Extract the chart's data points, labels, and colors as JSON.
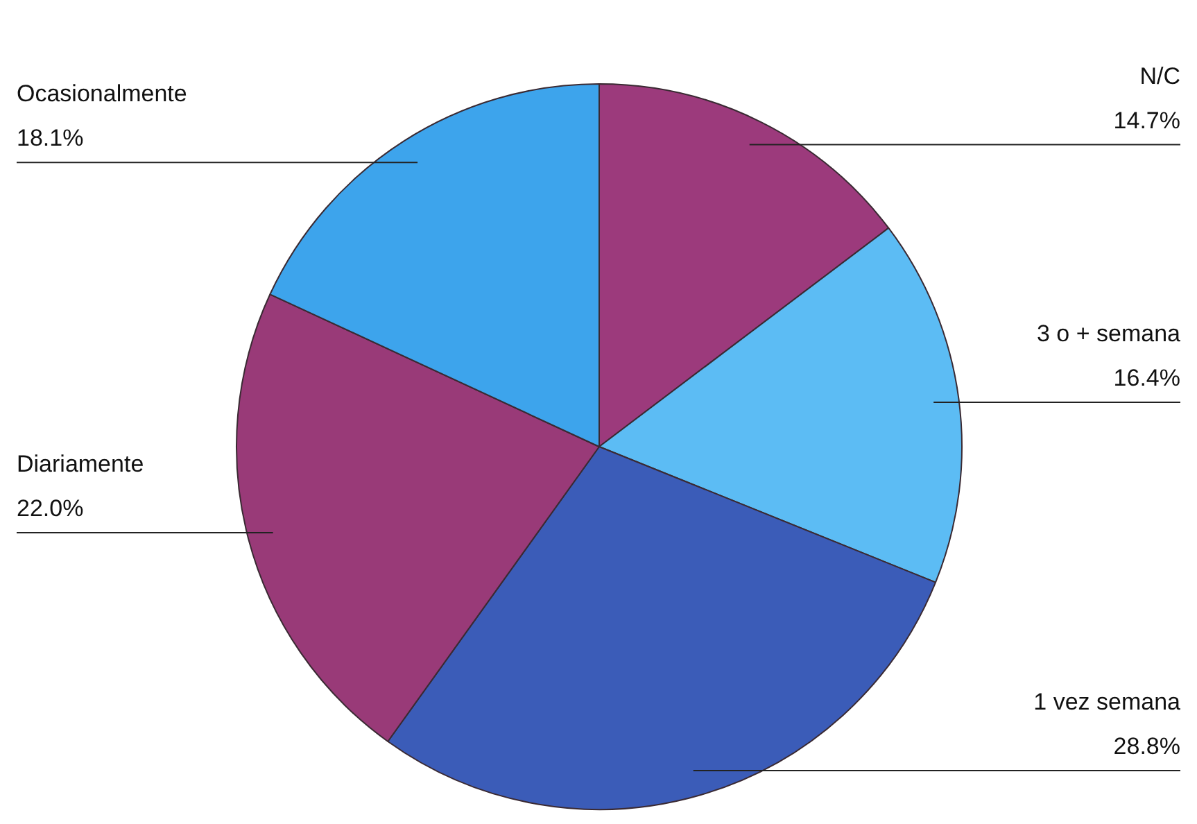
{
  "chart_data": {
    "type": "pie",
    "categories": [
      "N/C",
      "3 o + semana",
      "1 vez semana",
      "Diariamente",
      "Ocasionalmente"
    ],
    "values": [
      14.7,
      16.4,
      28.8,
      22.0,
      18.1
    ],
    "value_labels": [
      "14.7%",
      "16.4%",
      "28.8%",
      "22.0%",
      "18.1%"
    ],
    "colors": [
      "#9c3a7c",
      "#5cbcf4",
      "#3b5cb8",
      "#993a78",
      "#3da4ec"
    ],
    "legend": false
  }
}
